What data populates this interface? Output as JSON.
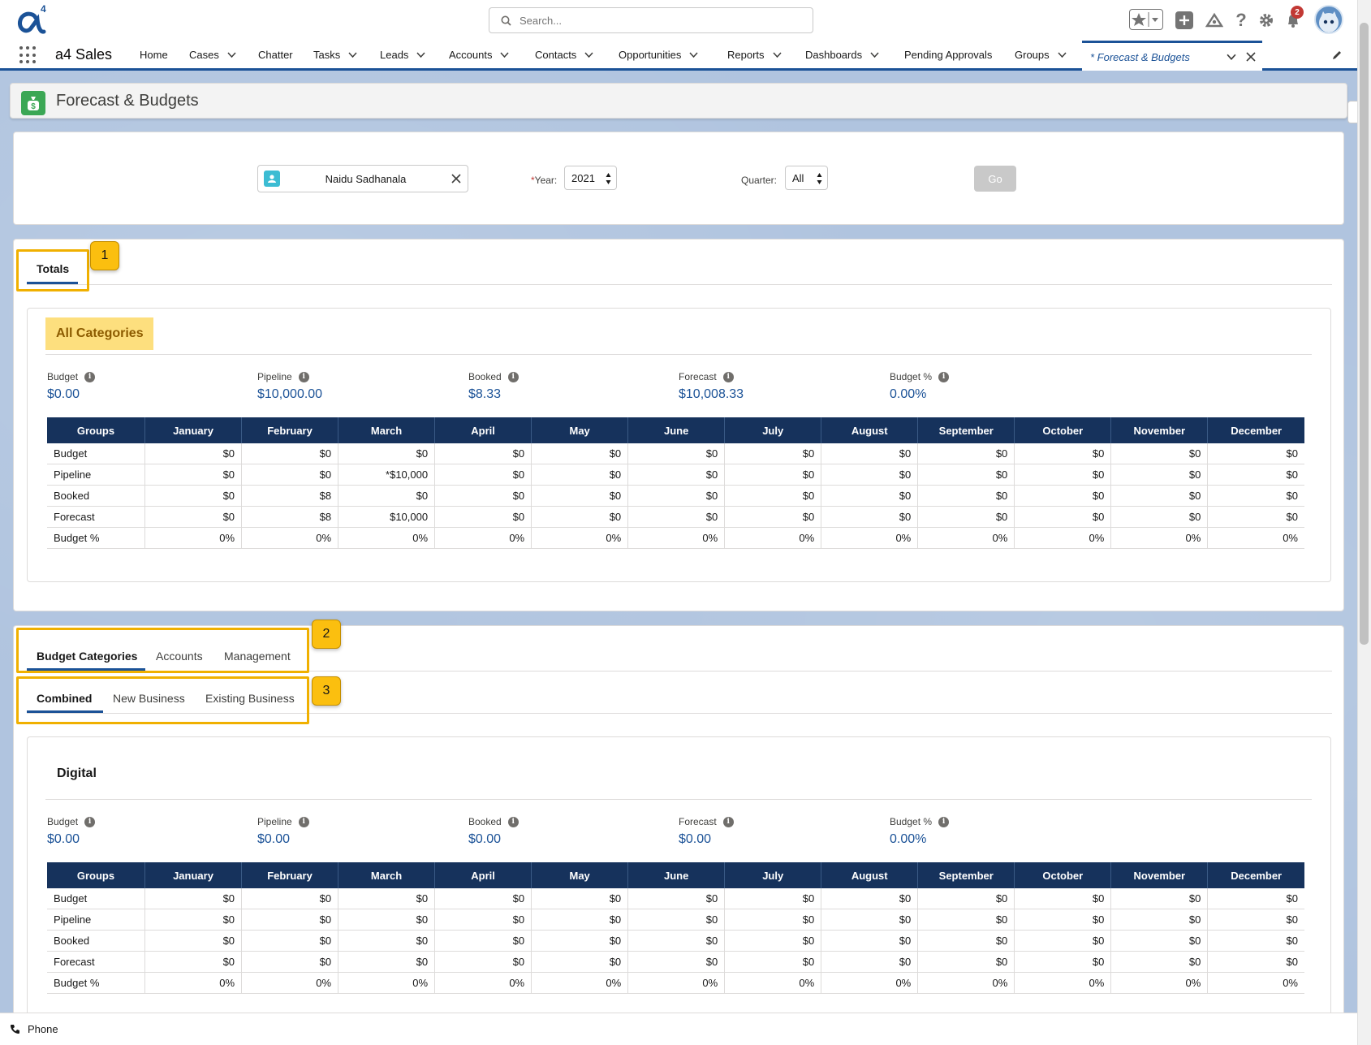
{
  "header": {
    "search_placeholder": "Search...",
    "notification_count": "2",
    "app_name": "a4 Sales",
    "logo_superscript": "4"
  },
  "nav": {
    "items": [
      {
        "label": "Home"
      },
      {
        "label": "Cases"
      },
      {
        "label": "Chatter"
      },
      {
        "label": "Tasks"
      },
      {
        "label": "Leads"
      },
      {
        "label": "Accounts"
      },
      {
        "label": "Contacts"
      },
      {
        "label": "Opportunities"
      },
      {
        "label": "Reports"
      },
      {
        "label": "Dashboards"
      },
      {
        "label": "Pending Approvals"
      },
      {
        "label": "Groups"
      }
    ],
    "active_tab": "* Forecast & Budgets"
  },
  "page": {
    "title": "Forecast & Budgets"
  },
  "filters": {
    "user": "Naidu Sadhanala",
    "year_required_mark": "*",
    "year_label": "Year:",
    "year_value": "2021",
    "quarter_label": "Quarter:",
    "quarter_value": "All",
    "go_label": "Go"
  },
  "totals": {
    "tab_label": "Totals",
    "step": "1",
    "category_label": "All Categories",
    "metrics": [
      {
        "label": "Budget",
        "value": "$0.00"
      },
      {
        "label": "Pipeline",
        "value": "$10,000.00"
      },
      {
        "label": "Booked",
        "value": "$8.33"
      },
      {
        "label": "Forecast",
        "value": "$10,008.33"
      },
      {
        "label": "Budget %",
        "value": "0.00%"
      }
    ],
    "table": {
      "headers": [
        "Groups",
        "January",
        "February",
        "March",
        "April",
        "May",
        "June",
        "July",
        "August",
        "September",
        "October",
        "November",
        "December"
      ],
      "rows": [
        [
          "Budget",
          "$0",
          "$0",
          "$0",
          "$0",
          "$0",
          "$0",
          "$0",
          "$0",
          "$0",
          "$0",
          "$0",
          "$0"
        ],
        [
          "Pipeline",
          "$0",
          "$0",
          "*$10,000",
          "$0",
          "$0",
          "$0",
          "$0",
          "$0",
          "$0",
          "$0",
          "$0",
          "$0"
        ],
        [
          "Booked",
          "$0",
          "$8",
          "$0",
          "$0",
          "$0",
          "$0",
          "$0",
          "$0",
          "$0",
          "$0",
          "$0",
          "$0"
        ],
        [
          "Forecast",
          "$0",
          "$8",
          "$10,000",
          "$0",
          "$0",
          "$0",
          "$0",
          "$0",
          "$0",
          "$0",
          "$0",
          "$0"
        ],
        [
          "Budget %",
          "0%",
          "0%",
          "0%",
          "0%",
          "0%",
          "0%",
          "0%",
          "0%",
          "0%",
          "0%",
          "0%",
          "0%"
        ]
      ]
    }
  },
  "categories": {
    "step_tabs": "2",
    "step_subtabs": "3",
    "tabs": [
      {
        "label": "Budget Categories"
      },
      {
        "label": "Accounts"
      },
      {
        "label": "Management"
      }
    ],
    "subtabs": [
      {
        "label": "Combined"
      },
      {
        "label": "New Business"
      },
      {
        "label": "Existing Business"
      }
    ],
    "section_title": "Digital",
    "metrics": [
      {
        "label": "Budget",
        "value": "$0.00"
      },
      {
        "label": "Pipeline",
        "value": "$0.00"
      },
      {
        "label": "Booked",
        "value": "$0.00"
      },
      {
        "label": "Forecast",
        "value": "$0.00"
      },
      {
        "label": "Budget %",
        "value": "0.00%"
      }
    ],
    "table": {
      "headers": [
        "Groups",
        "January",
        "February",
        "March",
        "April",
        "May",
        "June",
        "July",
        "August",
        "September",
        "October",
        "November",
        "December"
      ],
      "rows": [
        [
          "Budget",
          "$0",
          "$0",
          "$0",
          "$0",
          "$0",
          "$0",
          "$0",
          "$0",
          "$0",
          "$0",
          "$0",
          "$0"
        ],
        [
          "Pipeline",
          "$0",
          "$0",
          "$0",
          "$0",
          "$0",
          "$0",
          "$0",
          "$0",
          "$0",
          "$0",
          "$0",
          "$0"
        ],
        [
          "Booked",
          "$0",
          "$0",
          "$0",
          "$0",
          "$0",
          "$0",
          "$0",
          "$0",
          "$0",
          "$0",
          "$0",
          "$0"
        ],
        [
          "Forecast",
          "$0",
          "$0",
          "$0",
          "$0",
          "$0",
          "$0",
          "$0",
          "$0",
          "$0",
          "$0",
          "$0",
          "$0"
        ],
        [
          "Budget %",
          "0%",
          "0%",
          "0%",
          "0%",
          "0%",
          "0%",
          "0%",
          "0%",
          "0%",
          "0%",
          "0%",
          "0%"
        ]
      ]
    }
  },
  "footer": {
    "phone_label": "Phone"
  },
  "colors": {
    "brand_navy": "#16325c",
    "accent_blue": "#1b5297",
    "highlight_yellow": "#fbbf0f",
    "all_categories_bg": "#fddf7e",
    "page_icon_green": "#3ba755"
  }
}
